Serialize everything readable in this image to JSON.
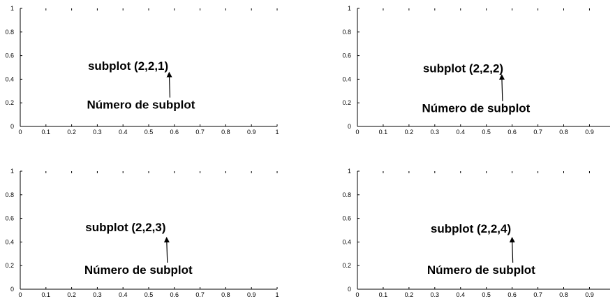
{
  "chart_data": [
    {
      "type": "line",
      "xlim": [
        0,
        1
      ],
      "ylim": [
        0,
        1
      ],
      "xticks": [
        "0",
        "0.1",
        "0.2",
        "0.3",
        "0.4",
        "0.5",
        "0.6",
        "0.7",
        "0.8",
        "0.9",
        "1"
      ],
      "yticks": [
        "0",
        "0.2",
        "0.4",
        "0.6",
        "0.8",
        "1"
      ],
      "grid": false,
      "annotations": [
        {
          "text": "subplot (2,2,1)",
          "x": 0.42,
          "y": 0.48
        },
        {
          "text": "Número de subplot",
          "x": 0.47,
          "y": 0.15,
          "arrow_to": {
            "x": 0.58,
            "y": 0.44
          }
        }
      ]
    },
    {
      "type": "line",
      "xlim": [
        0,
        0.98
      ],
      "ylim": [
        0,
        1
      ],
      "xticks": [
        "0",
        "0.1",
        "0.2",
        "0.3",
        "0.4",
        "0.5",
        "0.6",
        "0.7",
        "0.8",
        "0.9"
      ],
      "yticks": [
        "0",
        "0.2",
        "0.4",
        "0.6",
        "0.8",
        "1"
      ],
      "grid": false,
      "annotations": [
        {
          "text": "subplot (2,2,2)",
          "x": 0.41,
          "y": 0.46
        },
        {
          "text": "Número de subplot",
          "x": 0.46,
          "y": 0.12,
          "arrow_to": {
            "x": 0.56,
            "y": 0.42
          }
        }
      ]
    },
    {
      "type": "line",
      "xlim": [
        0,
        1
      ],
      "ylim": [
        0,
        1
      ],
      "xticks": [
        "0",
        "0.1",
        "0.2",
        "0.3",
        "0.4",
        "0.5",
        "0.6",
        "0.7",
        "0.8",
        "0.9",
        "1"
      ],
      "yticks": [
        "0",
        "0.2",
        "0.4",
        "0.6",
        "0.8",
        "1"
      ],
      "grid": false,
      "annotations": [
        {
          "text": "subplot (2,2,3)",
          "x": 0.41,
          "y": 0.49
        },
        {
          "text": "Número de subplot",
          "x": 0.46,
          "y": 0.13,
          "arrow_to": {
            "x": 0.57,
            "y": 0.42
          }
        }
      ]
    },
    {
      "type": "line",
      "xlim": [
        0,
        0.98
      ],
      "ylim": [
        0,
        1
      ],
      "xticks": [
        "0",
        "0.1",
        "0.2",
        "0.3",
        "0.4",
        "0.5",
        "0.6",
        "0.7",
        "0.8",
        "0.9"
      ],
      "yticks": [
        "0",
        "0.2",
        "0.4",
        "0.6",
        "0.8",
        "1"
      ],
      "grid": false,
      "annotations": [
        {
          "text": "subplot (2,2,4)",
          "x": 0.44,
          "y": 0.48
        },
        {
          "text": "Número de subplot",
          "x": 0.48,
          "y": 0.13,
          "arrow_to": {
            "x": 0.6,
            "y": 0.42
          }
        }
      ]
    }
  ]
}
